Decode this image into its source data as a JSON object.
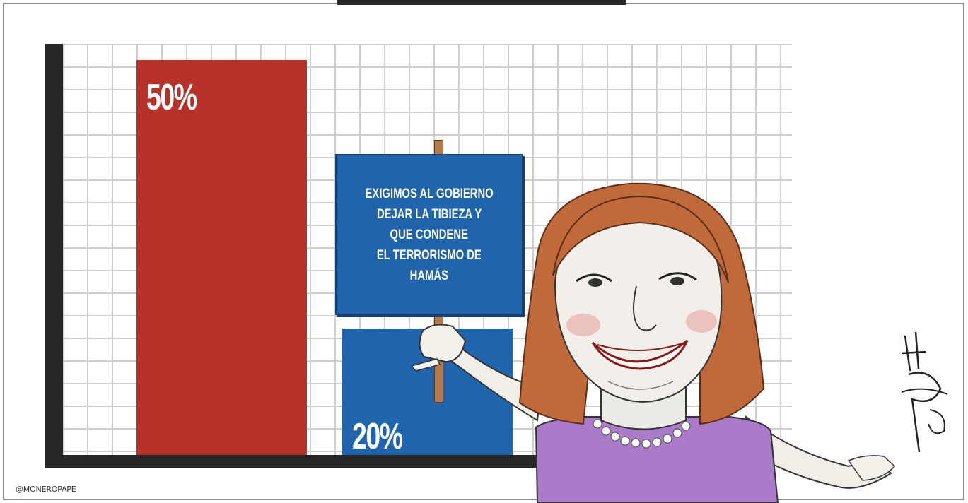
{
  "chart_data": {
    "type": "bar",
    "categories": [
      "",
      ""
    ],
    "values": [
      50,
      20
    ],
    "data_labels": [
      "50%",
      "20%"
    ],
    "colors": [
      "#b5312a",
      "#1f64ad"
    ],
    "grid": true,
    "title": "",
    "xlabel": "",
    "ylabel": ""
  },
  "sign": {
    "lines": [
      "EXIGIMOS AL GOBIERNO",
      "DEJAR LA TIBIEZA Y",
      "QUE CONDENE",
      "EL TERRORISMO DE",
      "HAMÁS"
    ]
  },
  "credit": "@MONEROPAPE",
  "colors": {
    "bar_red": "#b5312a",
    "bar_blue": "#1f64ad",
    "dress": "#a97bc9",
    "hair": "#c06a3c"
  },
  "icons": {
    "figure": "caricature-woman-holding-sign",
    "signature": "artist-signature"
  }
}
